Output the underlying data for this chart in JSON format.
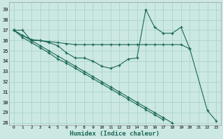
{
  "xlabel": "Humidex (Indice chaleur)",
  "bg_color": "#cce8e2",
  "grid_color": "#aad4cc",
  "line_color": "#1a6858",
  "xlim": [
    -0.5,
    23.5
  ],
  "ylim": [
    27.8,
    39.7
  ],
  "xticks": [
    0,
    1,
    2,
    3,
    4,
    5,
    6,
    7,
    8,
    9,
    10,
    11,
    12,
    13,
    14,
    15,
    16,
    17,
    18,
    19,
    20,
    21,
    22,
    23
  ],
  "yticks": [
    28,
    29,
    30,
    31,
    32,
    33,
    34,
    35,
    36,
    37,
    38,
    39
  ],
  "series": [
    {
      "x": [
        0,
        1,
        2,
        3,
        4,
        5,
        6,
        7,
        8,
        9,
        10,
        11,
        12,
        13,
        14,
        15,
        16,
        17,
        18,
        19,
        20,
        21,
        22,
        23
      ],
      "y": [
        37,
        37,
        36,
        36,
        35.8,
        35.5,
        34.8,
        34.3,
        34.3,
        34.0,
        33.5,
        33.3,
        33.6,
        34.2,
        34.3,
        39.0,
        37.3,
        36.7,
        36.7,
        37.3,
        35.2,
        null,
        29.2,
        28.2
      ]
    },
    {
      "x": [
        0,
        1,
        2,
        3,
        4,
        5,
        6,
        7,
        8,
        9,
        10,
        11,
        12,
        13,
        14,
        15,
        16,
        17,
        18,
        19,
        20
      ],
      "y": [
        37,
        36.5,
        36.1,
        36.0,
        35.9,
        35.8,
        35.7,
        35.6,
        35.6,
        35.6,
        35.6,
        35.6,
        35.6,
        35.6,
        35.6,
        35.6,
        35.6,
        35.6,
        35.6,
        35.6,
        35.2
      ]
    },
    {
      "x": [
        0,
        1,
        2,
        3,
        4,
        5,
        6,
        7,
        8,
        9,
        10,
        11,
        12,
        13,
        14,
        15,
        16,
        17
      ],
      "y": [
        37,
        36.3,
        35.8,
        35.3,
        34.8,
        34.2,
        33.8,
        33.3,
        32.8,
        32.3,
        31.8,
        31.3,
        30.8,
        30.3,
        29.8,
        29.3,
        28.8,
        28.3
      ]
    },
    {
      "x": [
        0,
        1,
        2,
        3,
        4,
        5,
        6,
        7,
        8,
        9,
        10,
        11,
        12,
        13,
        14,
        15,
        16,
        17,
        18,
        19,
        20,
        21,
        22,
        23
      ],
      "y": [
        37,
        36.5,
        36.0,
        35.5,
        35.0,
        34.5,
        34.0,
        33.5,
        33.0,
        32.5,
        32.0,
        31.5,
        31.0,
        30.5,
        30.0,
        29.5,
        29.0,
        28.5,
        28.0,
        null,
        null,
        null,
        null,
        null
      ]
    }
  ]
}
